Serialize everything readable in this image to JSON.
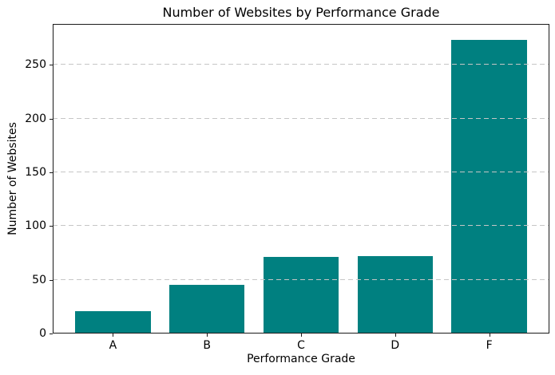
{
  "window": {
    "background": "#ffffff"
  },
  "chart_data": {
    "type": "bar",
    "title": "Number of Websites by Performance Grade",
    "xlabel": "Performance Grade",
    "ylabel": "Number of Websites",
    "categories": [
      "A",
      "B",
      "C",
      "D",
      "F"
    ],
    "values": [
      21,
      45,
      71,
      72,
      273
    ],
    "ylim": [
      0,
      288
    ],
    "yticks": [
      0,
      50,
      100,
      150,
      200,
      250
    ],
    "bar_color": "#008080",
    "grid": {
      "axis": "y",
      "style": "dashed",
      "color": "#c6c6c6",
      "drawn_over_bars": true
    },
    "legend": "none"
  }
}
